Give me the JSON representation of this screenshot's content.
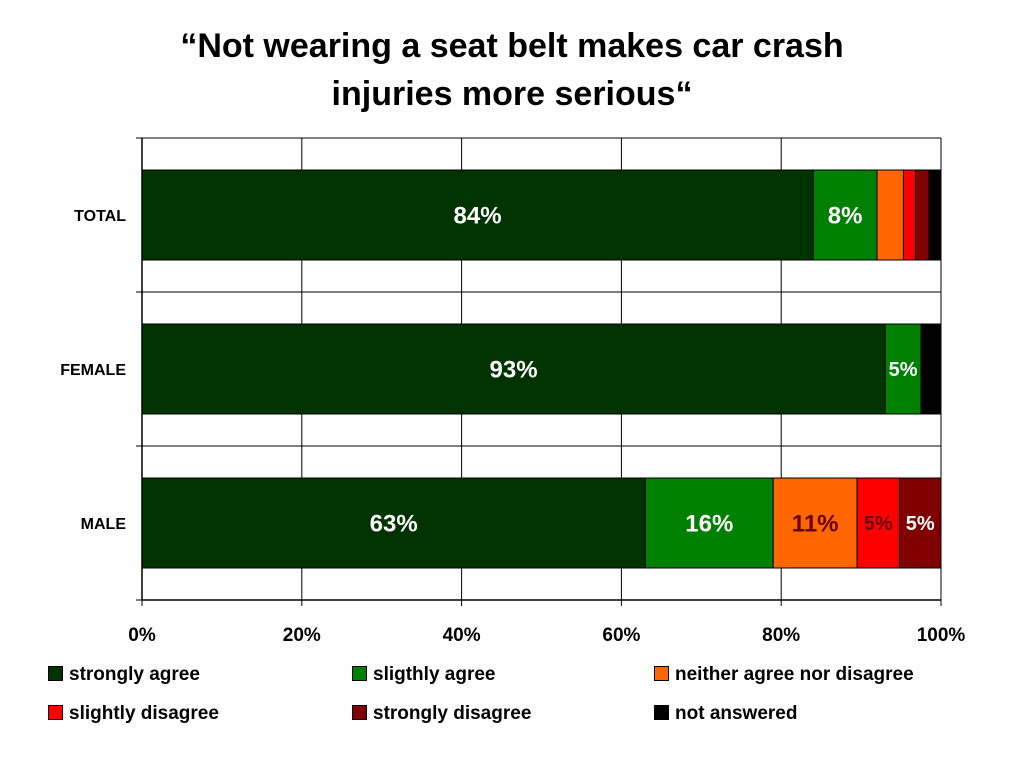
{
  "chart_data": {
    "type": "bar",
    "orientation": "horizontal",
    "stacking": "percent",
    "title_lines": [
      "“Not wearing a seat belt makes car crash",
      "injuries more serious“"
    ],
    "categories": [
      "TOTAL",
      "FEMALE",
      "MALE"
    ],
    "series": [
      {
        "name": "strongly agree",
        "color": "#003300",
        "values": [
          84,
          93,
          63
        ],
        "labels": [
          "84%",
          "93%",
          "63%"
        ]
      },
      {
        "name": "sligthly agree",
        "color": "#008000",
        "values": [
          8,
          4.5,
          16
        ],
        "labels": [
          "8%",
          "5%",
          "16%"
        ]
      },
      {
        "name": "neither agree nor disagree",
        "color": "#ff6600",
        "values": [
          3.3,
          0,
          10.5
        ],
        "labels": [
          "",
          "",
          "11%"
        ]
      },
      {
        "name": "slightly disagree",
        "color": "#ff0000",
        "values": [
          1.5,
          0,
          5.3
        ],
        "labels": [
          "",
          "",
          "5%"
        ]
      },
      {
        "name": "strongly disagree",
        "color": "#800000",
        "values": [
          1.7,
          0,
          5.2
        ],
        "labels": [
          "",
          "",
          "5%"
        ]
      },
      {
        "name": "not answered",
        "color": "#000000",
        "values": [
          1.5,
          2.5,
          0
        ],
        "labels": [
          "",
          "",
          ""
        ]
      }
    ],
    "xlim": [
      0,
      100
    ],
    "xticks": [
      "0%",
      "20%",
      "40%",
      "60%",
      "80%",
      "100%"
    ],
    "grid": true,
    "legend_position": "bottom"
  }
}
